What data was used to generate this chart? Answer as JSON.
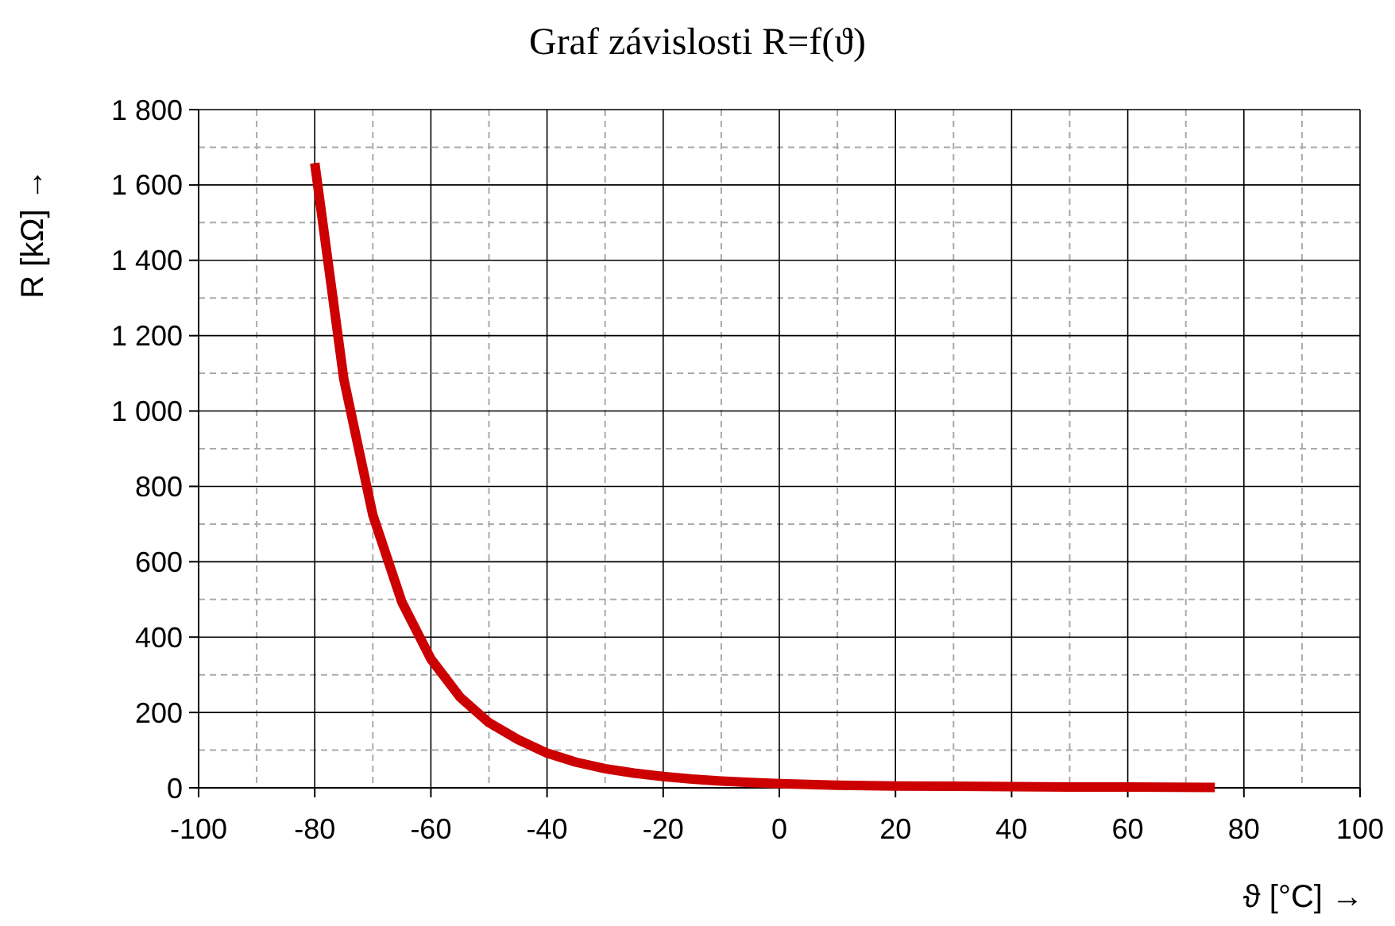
{
  "chart_data": {
    "type": "line",
    "title": "Graf závislosti R=f(ϑ)",
    "xlabel": "ϑ [°C] →",
    "ylabel": "R [kΩ] →",
    "x": [
      -80,
      -75,
      -70,
      -65,
      -60,
      -55,
      -50,
      -45,
      -40,
      -35,
      -30,
      -25,
      -20,
      -15,
      -10,
      -5,
      0,
      10,
      20,
      30,
      40,
      50,
      60,
      75
    ],
    "series": [
      {
        "color": "#cc0000",
        "values": [
          1658,
          1085,
          724,
          493,
          342,
          241,
          173,
          128,
          92,
          68,
          51,
          39,
          30,
          23,
          18,
          14,
          11,
          7,
          5,
          4,
          3,
          2,
          2,
          1
        ]
      }
    ],
    "xlim": [
      -100,
      100
    ],
    "xticks": [
      -100,
      -80,
      -60,
      -40,
      -20,
      0,
      20,
      40,
      60,
      80,
      100
    ],
    "ylim": [
      0,
      1800
    ],
    "yticks": [
      0,
      200,
      400,
      600,
      800,
      {
        "value": 1000,
        "label": "1 000"
      },
      {
        "value": 1200,
        "label": "1 200"
      },
      {
        "value": 1400,
        "label": "1 400"
      },
      {
        "value": 1600,
        "label": "1 600"
      },
      {
        "value": 1800,
        "label": "1 800"
      }
    ],
    "grid": true,
    "marker": "none",
    "line_style": "solid"
  }
}
